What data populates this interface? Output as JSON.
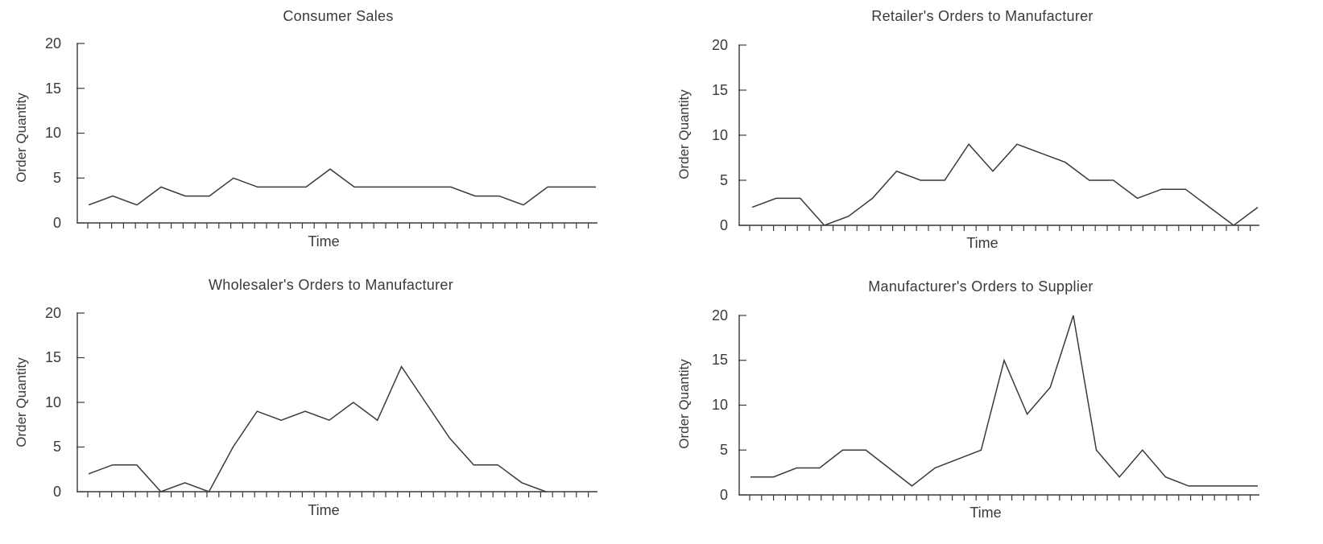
{
  "chart_data": [
    {
      "type": "line",
      "title": "Consumer Sales",
      "xlabel": "Time",
      "ylabel": "Order Quantity",
      "ylim": [
        0,
        20
      ],
      "yticks": [
        "0",
        "5",
        "10",
        "15",
        "20"
      ],
      "grid": false,
      "series": [
        {
          "values": [
            2,
            3,
            2,
            4,
            3,
            3,
            5,
            4,
            4,
            4,
            6,
            4,
            4,
            4,
            4,
            4,
            3,
            3,
            2,
            4,
            4,
            4
          ]
        }
      ]
    },
    {
      "type": "line",
      "title": "Retailer's Orders to Manufacturer",
      "xlabel": "Time",
      "ylabel": "Order Quantity",
      "ylim": [
        0,
        20
      ],
      "yticks": [
        "0",
        "5",
        "10",
        "15",
        "20"
      ],
      "grid": false,
      "series": [
        {
          "values": [
            2,
            3,
            3,
            0,
            1,
            3,
            6,
            5,
            5,
            9,
            6,
            9,
            8,
            7,
            5,
            5,
            3,
            4,
            4,
            2,
            0,
            2
          ]
        }
      ]
    },
    {
      "type": "line",
      "title": "Wholesaler's Orders to Manufacturer",
      "xlabel": "Time",
      "ylabel": "Order Quantity",
      "ylim": [
        0,
        20
      ],
      "yticks": [
        "0",
        "5",
        "10",
        "15",
        "20"
      ],
      "grid": false,
      "series": [
        {
          "values": [
            2,
            3,
            3,
            0,
            1,
            0,
            5,
            9,
            8,
            9,
            8,
            10,
            8,
            14,
            10,
            6,
            3,
            3,
            1,
            0
          ]
        }
      ]
    },
    {
      "type": "line",
      "title": "Manufacturer's Orders to Supplier",
      "xlabel": "Time",
      "ylabel": "Order Quantity",
      "ylim": [
        0,
        20
      ],
      "yticks": [
        "0",
        "5",
        "10",
        "15",
        "20"
      ],
      "grid": false,
      "series": [
        {
          "values": [
            2,
            2,
            3,
            3,
            5,
            5,
            3,
            1,
            3,
            4,
            5,
            15,
            9,
            12,
            20,
            5,
            2,
            5,
            2,
            1,
            1,
            1,
            1
          ]
        }
      ]
    }
  ]
}
